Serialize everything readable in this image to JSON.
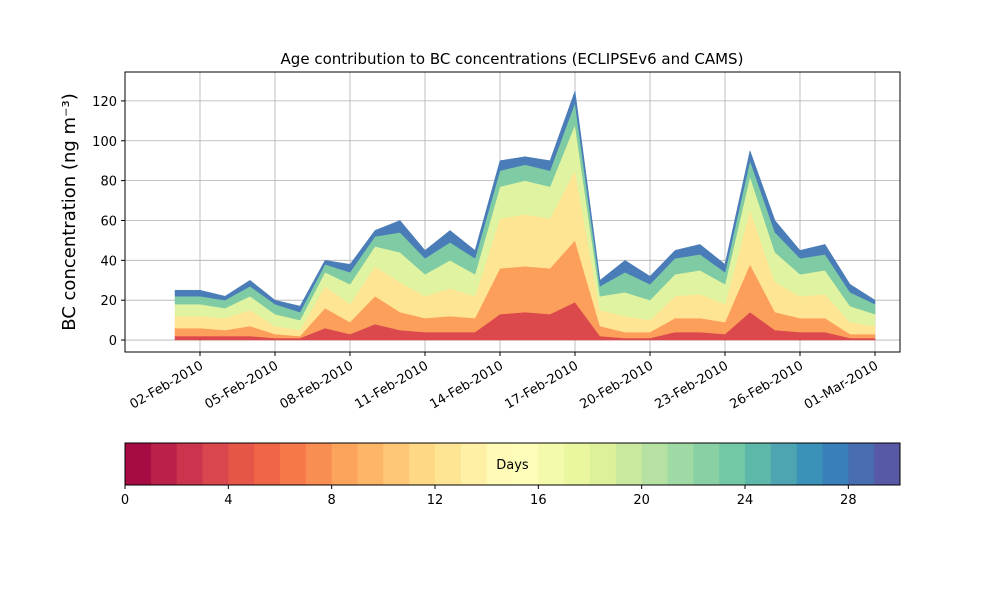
{
  "chart_data": {
    "type": "stacked_area",
    "title": "Age contribution to BC concentrations (ECLIPSEv6 and CAMS)",
    "y_label": "BC concentration (ng m⁻³)",
    "x": [
      "2010-02-01",
      "2010-02-02",
      "2010-02-03",
      "2010-02-04",
      "2010-02-05",
      "2010-02-06",
      "2010-02-07",
      "2010-02-08",
      "2010-02-09",
      "2010-02-10",
      "2010-02-11",
      "2010-02-12",
      "2010-02-13",
      "2010-02-14",
      "2010-02-15",
      "2010-02-16",
      "2010-02-17",
      "2010-02-18",
      "2010-02-19",
      "2010-02-20",
      "2010-02-21",
      "2010-02-22",
      "2010-02-23",
      "2010-02-24",
      "2010-02-25",
      "2010-02-26",
      "2010-02-27",
      "2010-02-28",
      "2010-03-01"
    ],
    "series": [
      {
        "color": "#dc494c",
        "values": [
          2,
          2,
          2,
          2,
          1,
          1,
          6,
          3,
          8,
          5,
          4,
          4,
          4,
          13,
          14,
          13,
          19,
          2,
          1,
          1,
          4,
          4,
          3,
          14,
          5,
          4,
          4,
          1,
          1
        ]
      },
      {
        "color": "#fb9f5a",
        "values": [
          4,
          4,
          3,
          5,
          2,
          1,
          10,
          6,
          14,
          9,
          7,
          8,
          7,
          23,
          23,
          23,
          31,
          5,
          3,
          3,
          7,
          7,
          6,
          24,
          9,
          7,
          7,
          2,
          2
        ]
      },
      {
        "color": "#fee593",
        "values": [
          6,
          6,
          6,
          8,
          4,
          3,
          11,
          9,
          15,
          15,
          11,
          14,
          11,
          25,
          26,
          25,
          35,
          8,
          8,
          6,
          11,
          12,
          9,
          27,
          15,
          11,
          12,
          6,
          4
        ]
      },
      {
        "color": "#e0f3a1",
        "values": [
          6,
          6,
          5,
          7,
          6,
          5,
          7,
          10,
          10,
          15,
          11,
          14,
          11,
          16,
          17,
          16,
          23,
          7,
          12,
          10,
          11,
          12,
          10,
          17,
          15,
          11,
          12,
          8,
          6
        ]
      },
      {
        "color": "#7fcba4",
        "values": [
          4,
          4,
          4,
          5,
          5,
          4,
          4,
          6,
          5,
          10,
          8,
          9,
          8,
          8,
          8,
          8,
          11,
          5,
          10,
          8,
          8,
          8,
          6,
          8,
          10,
          8,
          8,
          7,
          5
        ]
      },
      {
        "color": "#4a7db8",
        "values": [
          3,
          3,
          2,
          3,
          2,
          3,
          2,
          4,
          3,
          6,
          4,
          6,
          4,
          5,
          4,
          5,
          6,
          3,
          6,
          4,
          4,
          5,
          4,
          5,
          6,
          4,
          5,
          4,
          2
        ]
      }
    ],
    "xlim": [
      "2010-01-30",
      "2010-03-02"
    ],
    "xticks": [
      {
        "value": "2010-02-02",
        "label": "02-Feb-2010"
      },
      {
        "value": "2010-02-05",
        "label": "05-Feb-2010"
      },
      {
        "value": "2010-02-08",
        "label": "08-Feb-2010"
      },
      {
        "value": "2010-02-11",
        "label": "11-Feb-2010"
      },
      {
        "value": "2010-02-14",
        "label": "14-Feb-2010"
      },
      {
        "value": "2010-02-17",
        "label": "17-Feb-2010"
      },
      {
        "value": "2010-02-20",
        "label": "20-Feb-2010"
      },
      {
        "value": "2010-02-23",
        "label": "23-Feb-2010"
      },
      {
        "value": "2010-02-26",
        "label": "26-Feb-2010"
      },
      {
        "value": "2010-03-01",
        "label": "01-Mar-2010"
      }
    ],
    "ylim": [
      -6,
      134.5
    ],
    "yticks": [
      0,
      20,
      40,
      60,
      80,
      100,
      120
    ],
    "grid": true,
    "colorbar": {
      "label": "Days",
      "lim": [
        0,
        30
      ],
      "ticks": [
        0,
        4,
        8,
        12,
        16,
        20,
        24,
        28
      ],
      "colormap": [
        "#9e0142",
        "#d53e4f",
        "#f46d43",
        "#fdae61",
        "#fee08b",
        "#ffffbf",
        "#e6f598",
        "#abdda4",
        "#66c2a5",
        "#3288bd",
        "#5e4fa2"
      ]
    }
  }
}
